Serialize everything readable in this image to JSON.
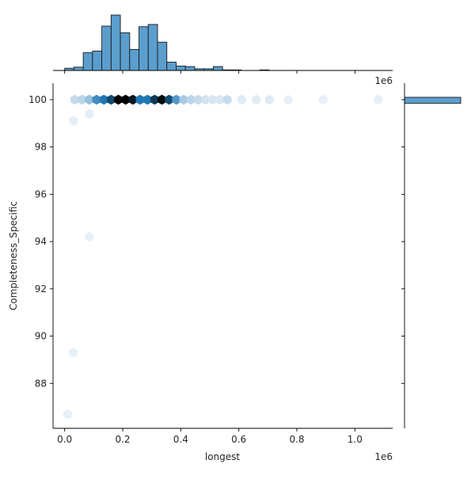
{
  "chart_data": {
    "type": "hexbin-jointplot",
    "xlabel": "longest",
    "ylabel": "Completeness_Specific",
    "x_offset_label": "1e6",
    "y_marginal_offset_label": "1e6",
    "xlim": [
      -0.04,
      1.13
    ],
    "ylim": [
      86.1,
      100.7
    ],
    "x_ticks": [
      0.0,
      0.2,
      0.4,
      0.6,
      0.8,
      1.0
    ],
    "x_tick_labels": [
      "0.0",
      "0.2",
      "0.4",
      "0.6",
      "0.8",
      "1.0"
    ],
    "y_ticks": [
      88,
      90,
      92,
      94,
      96,
      98,
      100
    ],
    "y_tick_labels": [
      "88",
      "90",
      "92",
      "94",
      "96",
      "98",
      "100"
    ],
    "colors": {
      "hist_fill": "#5b9ecd",
      "hist_edge": "#1a1a1a",
      "hex_dark": "#000000",
      "hex_mid": "#1f77b4",
      "hex_light": "#eef4fa"
    },
    "hexbins": [
      {
        "x": 0.035,
        "y": 100,
        "density": 0.12
      },
      {
        "x": 0.06,
        "y": 100,
        "density": 0.15
      },
      {
        "x": 0.085,
        "y": 100,
        "density": 0.25
      },
      {
        "x": 0.11,
        "y": 100,
        "density": 0.5
      },
      {
        "x": 0.135,
        "y": 100,
        "density": 0.6
      },
      {
        "x": 0.16,
        "y": 100,
        "density": 0.75
      },
      {
        "x": 0.185,
        "y": 100,
        "density": 1.0
      },
      {
        "x": 0.21,
        "y": 100,
        "density": 1.0
      },
      {
        "x": 0.235,
        "y": 100,
        "density": 0.92
      },
      {
        "x": 0.26,
        "y": 100,
        "density": 0.6
      },
      {
        "x": 0.285,
        "y": 100,
        "density": 0.6
      },
      {
        "x": 0.31,
        "y": 100,
        "density": 0.8
      },
      {
        "x": 0.335,
        "y": 100,
        "density": 0.97
      },
      {
        "x": 0.36,
        "y": 100,
        "density": 0.75
      },
      {
        "x": 0.385,
        "y": 100,
        "density": 0.45
      },
      {
        "x": 0.41,
        "y": 100,
        "density": 0.2
      },
      {
        "x": 0.435,
        "y": 100,
        "density": 0.15
      },
      {
        "x": 0.46,
        "y": 100,
        "density": 0.12
      },
      {
        "x": 0.485,
        "y": 100,
        "density": 0.08
      },
      {
        "x": 0.51,
        "y": 100,
        "density": 0.07
      },
      {
        "x": 0.535,
        "y": 100,
        "density": 0.06
      },
      {
        "x": 0.56,
        "y": 100,
        "density": 0.12
      },
      {
        "x": 0.61,
        "y": 100,
        "density": 0.04
      },
      {
        "x": 0.66,
        "y": 100,
        "density": 0.04
      },
      {
        "x": 0.705,
        "y": 100,
        "density": 0.05
      },
      {
        "x": 0.77,
        "y": 100,
        "density": 0.02
      },
      {
        "x": 0.89,
        "y": 100,
        "density": 0.02
      },
      {
        "x": 1.08,
        "y": 100,
        "density": 0.02
      },
      {
        "x": 0.03,
        "y": 99.1,
        "density": 0.03
      },
      {
        "x": 0.085,
        "y": 99.4,
        "density": 0.03
      },
      {
        "x": 0.085,
        "y": 94.2,
        "density": 0.02
      },
      {
        "x": 0.03,
        "y": 89.3,
        "density": 0.02
      },
      {
        "x": 0.01,
        "y": 86.7,
        "density": 0.02
      }
    ],
    "x_marginal_hist": {
      "bin_edges": [
        0.0,
        0.032,
        0.064,
        0.096,
        0.128,
        0.16,
        0.192,
        0.224,
        0.256,
        0.288,
        0.32,
        0.352,
        0.384,
        0.416,
        0.448,
        0.48,
        0.512,
        0.544,
        0.576,
        0.608,
        0.64,
        0.672,
        0.704,
        0.736,
        0.768,
        0.8,
        0.832,
        0.864,
        0.896,
        0.928,
        0.96,
        0.992,
        1.024,
        1.056,
        1.088
      ],
      "counts": [
        4,
        6,
        32,
        35,
        80,
        100,
        68,
        38,
        79,
        83,
        51,
        15,
        8,
        7,
        3,
        3,
        7,
        1,
        1,
        0,
        0,
        1,
        0,
        0,
        0,
        0,
        0,
        0,
        0,
        0,
        0,
        0,
        0,
        0
      ]
    },
    "y_marginal_hist": {
      "bars": [
        {
          "y_low": 99.85,
          "y_high": 100.1,
          "count": 485
        }
      ],
      "count_max": 485
    }
  }
}
